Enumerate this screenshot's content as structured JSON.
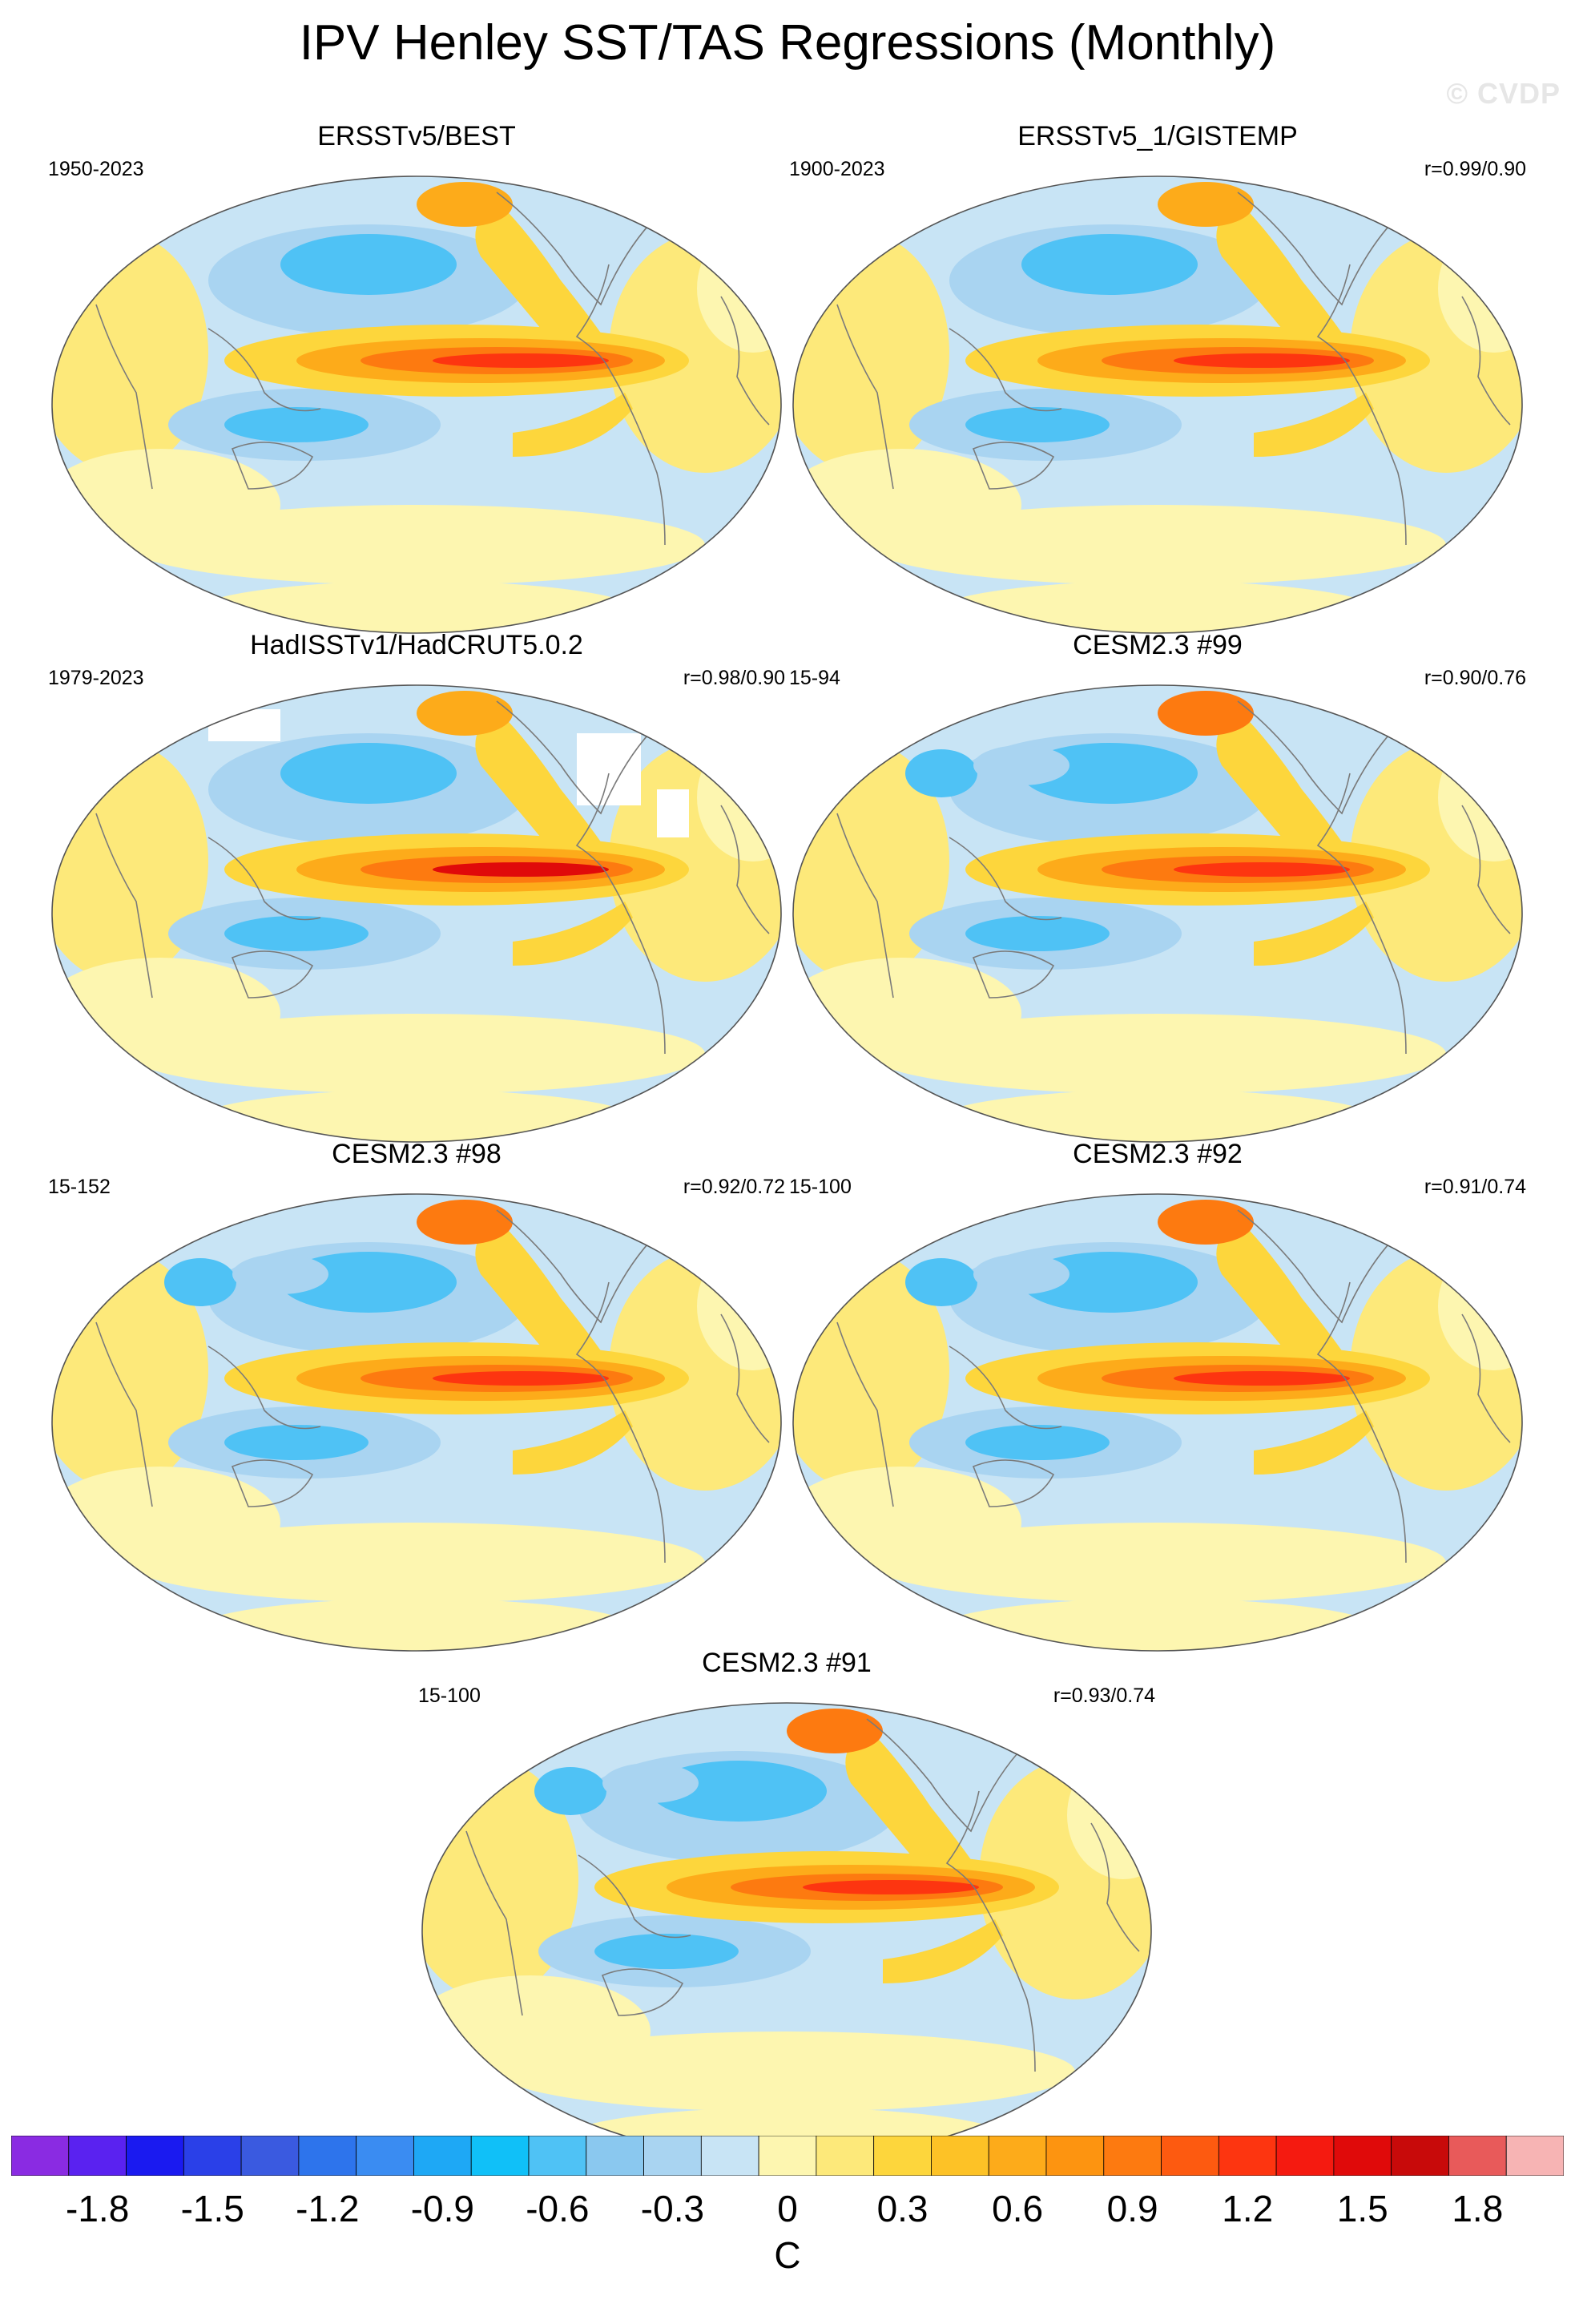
{
  "figure": {
    "title": "IPV Henley SST/TAS Regressions (Monthly)",
    "watermark": "© CVDP"
  },
  "panels": [
    {
      "title": "ERSSTv5/BEST",
      "period": "1950-2023",
      "corr": "",
      "variant": "obs"
    },
    {
      "title": "ERSSTv5_1/GISTEMP",
      "period": "1900-2023",
      "corr": "r=0.99/0.90",
      "variant": "obs"
    },
    {
      "title": "HadISSTv1/HadCRUT5.0.2",
      "period": "1979-2023",
      "corr": "r=0.98/0.90",
      "variant": "had"
    },
    {
      "title": "CESM2.3 #99",
      "period": "15-94",
      "corr": "r=0.90/0.76",
      "variant": "model"
    },
    {
      "title": "CESM2.3 #98",
      "period": "15-152",
      "corr": "r=0.92/0.72",
      "variant": "model"
    },
    {
      "title": "CESM2.3 #92",
      "period": "15-100",
      "corr": "r=0.91/0.74",
      "variant": "model"
    },
    {
      "title": "CESM2.3 #91",
      "period": "15-100",
      "corr": "r=0.93/0.74",
      "variant": "model"
    }
  ],
  "colorbar": {
    "units": "C",
    "tick_labels": [
      "-1.8",
      "-1.5",
      "-1.2",
      "-0.9",
      "-0.6",
      "-0.3",
      "0",
      "0.3",
      "0.6",
      "0.9",
      "1.2",
      "1.5",
      "1.8"
    ],
    "colors": [
      "#8a2be2",
      "#5a22f0",
      "#1a1af0",
      "#2a40e8",
      "#3a5ae0",
      "#2d74ec",
      "#3a8cf2",
      "#1ea8f5",
      "#10c0f8",
      "#4fc2f5",
      "#8ac8ef",
      "#a9d4f1",
      "#c8e4f5",
      "#fdf6b0",
      "#fde97a",
      "#fdd63c",
      "#fdc226",
      "#fdab1a",
      "#fd9410",
      "#fd7a10",
      "#fd5a10",
      "#fd3510",
      "#f51a10",
      "#e00a0a",
      "#c80a0a",
      "#e85a5a",
      "#f7b4b4"
    ]
  },
  "map_colors": {
    "ocean_bg": "#c8e4f5",
    "pale": "#fdf6b0",
    "yellow": "#fde97a",
    "gold": "#fdd63c",
    "orange": "#fdab1a",
    "dark_orange": "#fd7a10",
    "red": "#fd3510",
    "dark_red": "#e00a0a",
    "light_blue": "#a9d4f1",
    "mid_blue": "#8ac8ef",
    "blue": "#4fc2f5",
    "deep_blue": "#3a8cf2",
    "missing": "#ffffff",
    "coast": "#7a7a7a"
  }
}
